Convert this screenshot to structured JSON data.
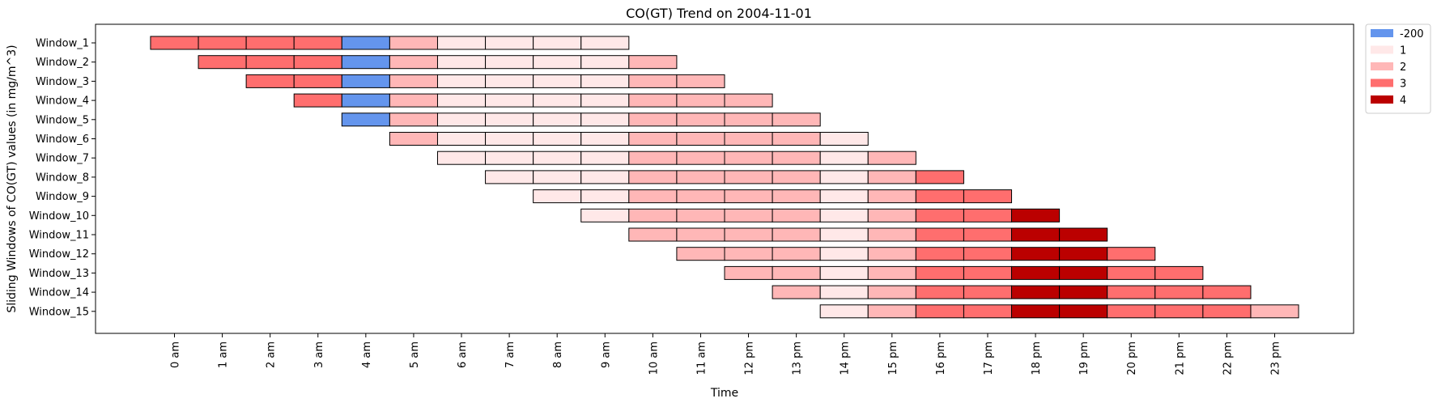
{
  "chart_data": {
    "type": "heatmap",
    "title": "CO(GT) Trend on 2004-11-01",
    "xlabel": "Time",
    "ylabel": "Sliding Windows of CO(GT) values (in mg/m^3)",
    "x_ticks": [
      "0 am",
      "1 am",
      "2 am",
      "3 am",
      "4 am",
      "5 am",
      "6 am",
      "7 am",
      "8 am",
      "9 am",
      "10 am",
      "11 am",
      "12 pm",
      "13 pm",
      "14 pm",
      "15 pm",
      "16 pm",
      "17 pm",
      "18 pm",
      "19 pm",
      "20 pm",
      "21 pm",
      "22 pm",
      "23 pm"
    ],
    "x_range": [
      -1.65,
      24.65
    ],
    "legend": {
      "placement": "outside-top-right",
      "entries": [
        {
          "label": "-200",
          "color": "#6495ED"
        },
        {
          "label": "1",
          "color": "#FFE8E8"
        },
        {
          "label": "2",
          "color": "#FFB7B7"
        },
        {
          "label": "3",
          "color": "#FF6E6E"
        },
        {
          "label": "4",
          "color": "#BB0000"
        }
      ]
    },
    "hourly_values": [
      3,
      3,
      3,
      3,
      -200,
      2,
      1,
      1,
      1,
      1,
      2,
      2,
      2,
      2,
      1,
      2,
      3,
      3,
      4,
      4,
      3,
      3,
      3,
      2
    ],
    "windows": [
      {
        "name": "Window_1",
        "start_hour": 0,
        "values": [
          3,
          3,
          3,
          3,
          -200,
          2,
          1,
          1,
          1,
          1
        ]
      },
      {
        "name": "Window_2",
        "start_hour": 1,
        "values": [
          3,
          3,
          3,
          -200,
          2,
          1,
          1,
          1,
          1,
          2
        ]
      },
      {
        "name": "Window_3",
        "start_hour": 2,
        "values": [
          3,
          3,
          -200,
          2,
          1,
          1,
          1,
          1,
          2,
          2
        ]
      },
      {
        "name": "Window_4",
        "start_hour": 3,
        "values": [
          3,
          -200,
          2,
          1,
          1,
          1,
          1,
          2,
          2,
          2
        ]
      },
      {
        "name": "Window_5",
        "start_hour": 4,
        "values": [
          -200,
          2,
          1,
          1,
          1,
          1,
          2,
          2,
          2,
          2
        ]
      },
      {
        "name": "Window_6",
        "start_hour": 5,
        "values": [
          2,
          1,
          1,
          1,
          1,
          2,
          2,
          2,
          2,
          1
        ]
      },
      {
        "name": "Window_7",
        "start_hour": 6,
        "values": [
          1,
          1,
          1,
          1,
          2,
          2,
          2,
          2,
          1,
          2
        ]
      },
      {
        "name": "Window_8",
        "start_hour": 7,
        "values": [
          1,
          1,
          1,
          2,
          2,
          2,
          2,
          1,
          2,
          3
        ]
      },
      {
        "name": "Window_9",
        "start_hour": 8,
        "values": [
          1,
          1,
          2,
          2,
          2,
          2,
          1,
          2,
          3,
          3
        ]
      },
      {
        "name": "Window_10",
        "start_hour": 9,
        "values": [
          1,
          2,
          2,
          2,
          2,
          1,
          2,
          3,
          3,
          4
        ]
      },
      {
        "name": "Window_11",
        "start_hour": 10,
        "values": [
          2,
          2,
          2,
          2,
          1,
          2,
          3,
          3,
          4,
          4
        ]
      },
      {
        "name": "Window_12",
        "start_hour": 11,
        "values": [
          2,
          2,
          2,
          1,
          2,
          3,
          3,
          4,
          4,
          3
        ]
      },
      {
        "name": "Window_13",
        "start_hour": 12,
        "values": [
          2,
          2,
          1,
          2,
          3,
          3,
          4,
          4,
          3,
          3
        ]
      },
      {
        "name": "Window_14",
        "start_hour": 13,
        "values": [
          2,
          1,
          2,
          3,
          3,
          4,
          4,
          3,
          3,
          3
        ]
      },
      {
        "name": "Window_15",
        "start_hour": 14,
        "values": [
          1,
          2,
          3,
          3,
          4,
          4,
          3,
          3,
          3,
          2
        ]
      }
    ]
  }
}
